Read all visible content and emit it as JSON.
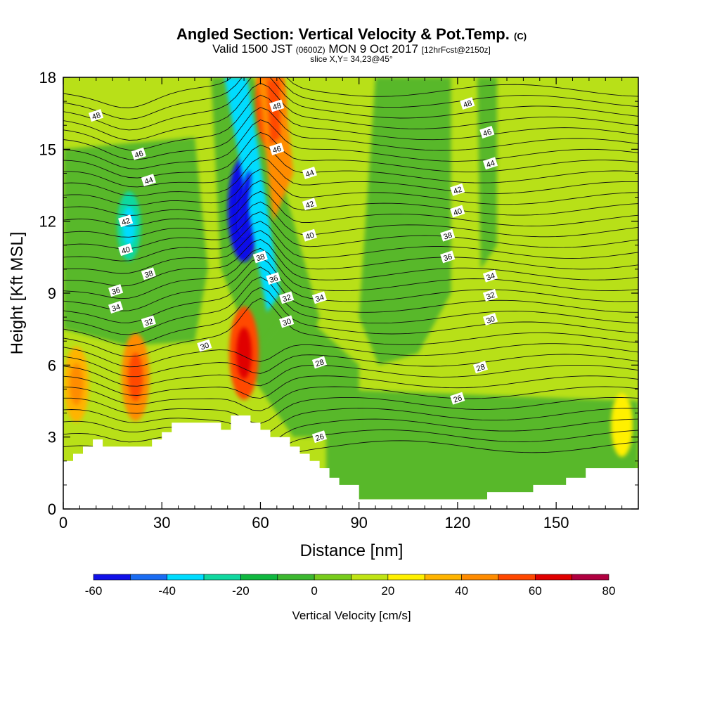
{
  "header": {
    "title_main": "Angled Section: Vertical Velocity & Pot.Temp.",
    "title_mark": "(C)",
    "valid_pre": "Valid 1500 JST",
    "valid_utc": "(0600Z)",
    "valid_date": "MON 9 Oct 2017",
    "valid_fcst": "[12hrFcst@2150z]",
    "slice": "slice X,Y= 34,23@45°"
  },
  "chart_data": {
    "type": "heatmap",
    "title": "Angled Section: Vertical Velocity & Pot.Temp.",
    "xlabel": "Distance [nm]",
    "ylabel": "Height [Kft MSL]",
    "xlim": [
      0,
      175
    ],
    "ylim": [
      0,
      18
    ],
    "x_ticks": [
      0,
      30,
      60,
      90,
      120,
      150
    ],
    "y_ticks": [
      0,
      3,
      6,
      9,
      12,
      15,
      18
    ],
    "grid": false,
    "colorbar": {
      "label": "Vertical Velocity [cm/s]",
      "ticks": [
        -60,
        -40,
        -20,
        0,
        20,
        40,
        60,
        80
      ],
      "bins": [
        -60,
        -50,
        -40,
        -30,
        -20,
        -10,
        0,
        10,
        20,
        30,
        40,
        50,
        60,
        70,
        80
      ],
      "colors": [
        "#1010e8",
        "#1a6cf2",
        "#00dcff",
        "#10d8a0",
        "#10b840",
        "#3cb830",
        "#78cc1c",
        "#c0e414",
        "#fff000",
        "#ffb400",
        "#ff8c00",
        "#ff4800",
        "#e00000",
        "#b00040",
        "#6a0a8a"
      ]
    },
    "background_colors": {
      "neutral_up": "#b8e018",
      "neutral_down": "#58b82c"
    },
    "cells": [
      {
        "x": 20,
        "y": 11.8,
        "w": -30,
        "note": "downdraft core"
      },
      {
        "x": 55,
        "y": 12.5,
        "w": -60,
        "note": "strong downdraft core"
      },
      {
        "x": 63,
        "y": 17,
        "w": 50,
        "note": "updraft aloft"
      },
      {
        "x": 22,
        "y": 5.5,
        "w": 45,
        "note": "lower updraft"
      },
      {
        "x": 55,
        "y": 6.5,
        "w": 50,
        "note": "lower updraft"
      },
      {
        "x": 4,
        "y": 5.2,
        "w": 35,
        "note": "boundary updraft"
      },
      {
        "x": 170,
        "y": 3.5,
        "w": 25,
        "note": "boundary updraft"
      }
    ],
    "theta_labels": [
      {
        "value": "48",
        "x": 10,
        "y": 16.4
      },
      {
        "value": "46",
        "x": 23,
        "y": 14.8
      },
      {
        "value": "44",
        "x": 26,
        "y": 13.7
      },
      {
        "value": "42",
        "x": 19,
        "y": 12.0
      },
      {
        "value": "40",
        "x": 19,
        "y": 10.8
      },
      {
        "value": "38",
        "x": 26,
        "y": 9.8
      },
      {
        "value": "36",
        "x": 16,
        "y": 9.1
      },
      {
        "value": "34",
        "x": 16,
        "y": 8.4
      },
      {
        "value": "32",
        "x": 26,
        "y": 7.8
      },
      {
        "value": "30",
        "x": 43,
        "y": 6.8
      },
      {
        "value": "48",
        "x": 65,
        "y": 16.8
      },
      {
        "value": "46",
        "x": 65,
        "y": 15.0
      },
      {
        "value": "44",
        "x": 75,
        "y": 14.0
      },
      {
        "value": "42",
        "x": 75,
        "y": 12.7
      },
      {
        "value": "40",
        "x": 75,
        "y": 11.4
      },
      {
        "value": "38",
        "x": 60,
        "y": 10.5
      },
      {
        "value": "36",
        "x": 64,
        "y": 9.6
      },
      {
        "value": "32",
        "x": 68,
        "y": 8.8
      },
      {
        "value": "34",
        "x": 78,
        "y": 8.8
      },
      {
        "value": "30",
        "x": 68,
        "y": 7.8
      },
      {
        "value": "28",
        "x": 78,
        "y": 6.1
      },
      {
        "value": "26",
        "x": 78,
        "y": 3.0
      },
      {
        "value": "48",
        "x": 123,
        "y": 16.9
      },
      {
        "value": "46",
        "x": 129,
        "y": 15.7
      },
      {
        "value": "44",
        "x": 130,
        "y": 14.4
      },
      {
        "value": "42",
        "x": 120,
        "y": 13.3
      },
      {
        "value": "40",
        "x": 120,
        "y": 12.4
      },
      {
        "value": "38",
        "x": 117,
        "y": 11.4
      },
      {
        "value": "36",
        "x": 117,
        "y": 10.5
      },
      {
        "value": "34",
        "x": 130,
        "y": 9.7
      },
      {
        "value": "32",
        "x": 130,
        "y": 8.9
      },
      {
        "value": "30",
        "x": 130,
        "y": 7.9
      },
      {
        "value": "28",
        "x": 127,
        "y": 5.9
      },
      {
        "value": "26",
        "x": 120,
        "y": 4.6
      }
    ],
    "terrain": [
      [
        0,
        2.0
      ],
      [
        3,
        2.0
      ],
      [
        3,
        2.3
      ],
      [
        6,
        2.3
      ],
      [
        6,
        2.6
      ],
      [
        9,
        2.6
      ],
      [
        9,
        2.9
      ],
      [
        12,
        2.9
      ],
      [
        12,
        2.6
      ],
      [
        27,
        2.6
      ],
      [
        27,
        2.9
      ],
      [
        30,
        2.9
      ],
      [
        30,
        3.2
      ],
      [
        33,
        3.2
      ],
      [
        33,
        3.6
      ],
      [
        45,
        3.6
      ],
      [
        48,
        3.6
      ],
      [
        48,
        3.3
      ],
      [
        51,
        3.3
      ],
      [
        51,
        3.9
      ],
      [
        57,
        3.9
      ],
      [
        57,
        3.6
      ],
      [
        60,
        3.6
      ],
      [
        60,
        3.3
      ],
      [
        63,
        3.3
      ],
      [
        63,
        3.0
      ],
      [
        69,
        3.0
      ],
      [
        69,
        2.6
      ],
      [
        72,
        2.6
      ],
      [
        72,
        2.3
      ],
      [
        75,
        2.3
      ],
      [
        75,
        2.0
      ],
      [
        78,
        2.0
      ],
      [
        78,
        1.7
      ],
      [
        81,
        1.7
      ],
      [
        81,
        1.3
      ],
      [
        84,
        1.3
      ],
      [
        84,
        1.0
      ],
      [
        90,
        1.0
      ],
      [
        90,
        0.4
      ],
      [
        129,
        0.4
      ],
      [
        129,
        0.7
      ],
      [
        143,
        0.7
      ],
      [
        143,
        1.0
      ],
      [
        153,
        1.0
      ],
      [
        153,
        1.3
      ],
      [
        159,
        1.3
      ],
      [
        159,
        1.7
      ],
      [
        175,
        1.7
      ]
    ]
  }
}
